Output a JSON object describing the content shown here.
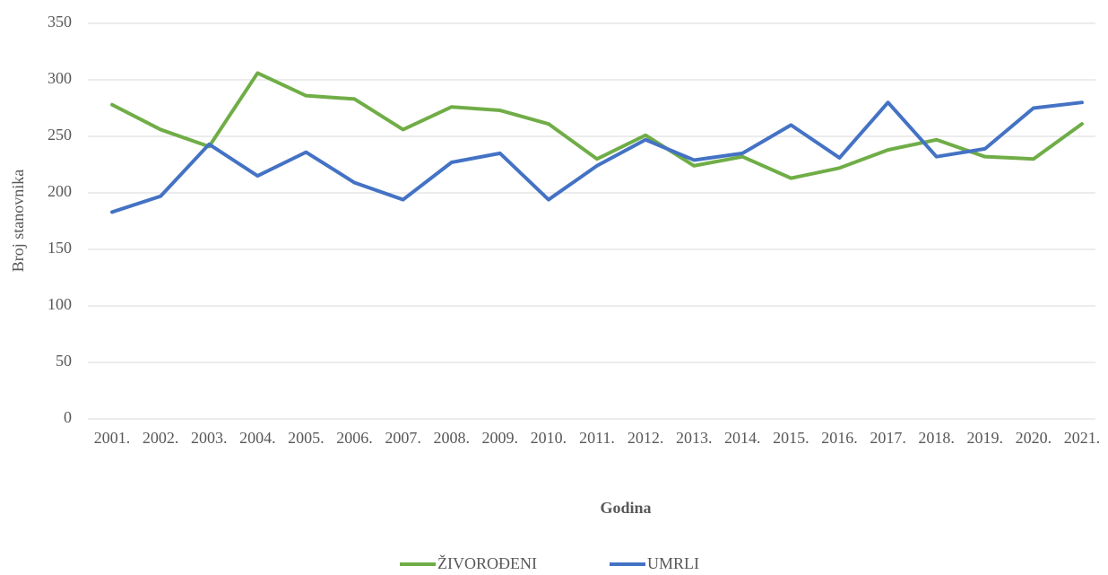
{
  "chart_data": {
    "type": "line",
    "y_label": "Broj stanovnika",
    "x_label": "Godina",
    "categories": [
      "2001.",
      "2002.",
      "2003.",
      "2004.",
      "2005.",
      "2006.",
      "2007.",
      "2008.",
      "2009.",
      "2010.",
      "2011.",
      "2012.",
      "2013.",
      "2014.",
      "2015.",
      "2016.",
      "2017.",
      "2018.",
      "2019.",
      "2020.",
      "2021."
    ],
    "series": [
      {
        "name": "ŽIVOROĐENI",
        "color": "#70ad47",
        "values": [
          278,
          256,
          241,
          306,
          286,
          283,
          256,
          276,
          273,
          261,
          230,
          251,
          224,
          232,
          213,
          222,
          238,
          247,
          232,
          230,
          261
        ]
      },
      {
        "name": "UMRLI",
        "color": "#4472c4",
        "values": [
          183,
          197,
          243,
          215,
          236,
          209,
          194,
          227,
          235,
          194,
          224,
          247,
          229,
          235,
          260,
          231,
          280,
          232,
          239,
          275,
          280
        ]
      }
    ],
    "ylim": [
      0,
      350
    ],
    "yticks": [
      0,
      50,
      100,
      150,
      200,
      250,
      300,
      350
    ],
    "grid": true,
    "legend": "bottom"
  }
}
